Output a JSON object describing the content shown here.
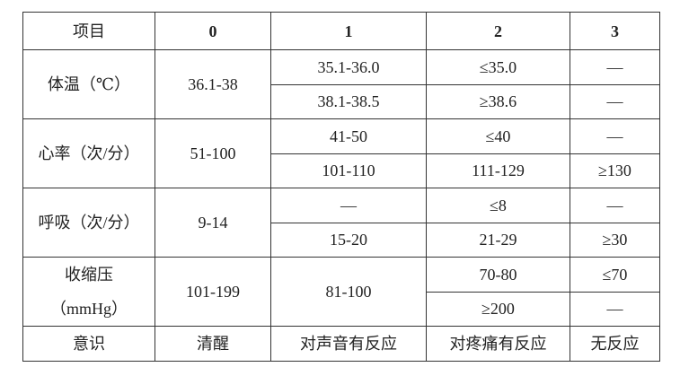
{
  "header": [
    "项目",
    "0",
    "1",
    "2",
    "3"
  ],
  "rows": {
    "temp": {
      "label": "体温（℃）",
      "s0": "36.1-38",
      "a1": "35.1-36.0",
      "a2": "≤35.0",
      "a3": "—",
      "b1": "38.1-38.5",
      "b2": "≥38.6",
      "b3": "—"
    },
    "hr": {
      "label": "心率（次/分）",
      "s0": "51-100",
      "a1": "41-50",
      "a2": "≤40",
      "a3": "—",
      "b1": "101-110",
      "b2": "111-129",
      "b3": "≥130"
    },
    "resp": {
      "label": "呼吸（次/分）",
      "s0": "9-14",
      "a1": "—",
      "a2": "≤8",
      "a3": "—",
      "b1": "15-20",
      "b2": "21-29",
      "b3": "≥30"
    },
    "sbp": {
      "label1": "收缩压",
      "label2": "（mmHg）",
      "s0": "101-199",
      "s1": "81-100",
      "a2": "70-80",
      "a3": "≤70",
      "b2": "≥200",
      "b3": "—"
    },
    "con": {
      "label": "意识",
      "s0": "清醒",
      "s1": "对声音有反应",
      "s2": "对疼痛有反应",
      "s3": "无反应"
    }
  }
}
